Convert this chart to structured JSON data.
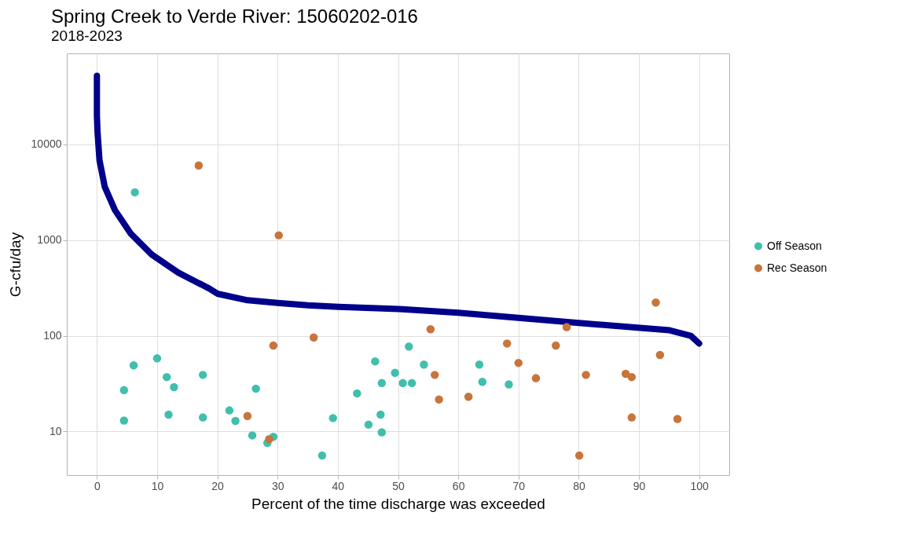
{
  "chart_data": {
    "type": "scatter",
    "title": "Spring Creek to Verde River: 15060202-016",
    "subtitle": "2018-2023",
    "xlabel": "Percent of the time discharge was exceeded",
    "ylabel": "G-cfu/day",
    "log": "y",
    "xlim": [
      -5,
      105
    ],
    "xticks": [
      0,
      10,
      20,
      30,
      40,
      50,
      60,
      70,
      80,
      90,
      100
    ],
    "ylim": [
      3.5,
      89000
    ],
    "yticks": [
      10,
      100,
      1000,
      10000
    ],
    "grid": true,
    "legend": "right",
    "marker": "circle",
    "series": [
      {
        "type": "line",
        "marker": "none",
        "color": "#00008b",
        "x": [
          0,
          0,
          0.1,
          0.43,
          1.3,
          3.0,
          5.6,
          9.1,
          13.5,
          18.7,
          20,
          25,
          30,
          35,
          40.1,
          50.1,
          60,
          70,
          80,
          90.2,
          95.1,
          98.6,
          100
        ],
        "values": [
          52000,
          20000,
          13500,
          6800,
          3600,
          2050,
          1170,
          705,
          457,
          310,
          275,
          235,
          220,
          208,
          200,
          190,
          174,
          154,
          136,
          121,
          114,
          100,
          83
        ]
      },
      {
        "name": "Off Season",
        "color": "#40bfac",
        "x": [
          6.3,
          6.1,
          10,
          11.6,
          12.8,
          4.5,
          17.6,
          4.5,
          11.9,
          17.6,
          22,
          23,
          26.4,
          25.8,
          28.3,
          29.3,
          37.4,
          39.2,
          43.2,
          46.2,
          49.5,
          47.3,
          50.8,
          45.1,
          47.1,
          47.3,
          51.8,
          52.3,
          54.3,
          63.5,
          64,
          68.4
        ],
        "values": [
          3150,
          49,
          58,
          37,
          29,
          27,
          39,
          13,
          15,
          14,
          16.6,
          12.9,
          28,
          9.1,
          7.6,
          8.8,
          5.6,
          13.8,
          25,
          54,
          41,
          32,
          32,
          11.8,
          15,
          9.8,
          77,
          32,
          50,
          50,
          33,
          31
        ]
      },
      {
        "name": "Rec Season",
        "color": "#c8743a",
        "x": [
          16.9,
          30.2,
          25,
          28.6,
          29.3,
          36,
          55.4,
          56.1,
          56.8,
          61.7,
          68.1,
          70,
          72.9,
          76.2,
          78,
          80.1,
          81.2,
          87.8,
          88.8,
          88.8,
          92.8,
          93.5,
          96.4
        ],
        "values": [
          6000,
          1120,
          14.5,
          8.3,
          79,
          96,
          117,
          39,
          21.6,
          23,
          83,
          52,
          36,
          79,
          123,
          5.6,
          39,
          40,
          37,
          14,
          222,
          63,
          13.5
        ]
      }
    ]
  }
}
